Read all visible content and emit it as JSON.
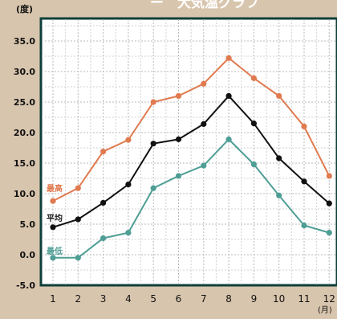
{
  "title_fragment": "ー　大気温グラフ",
  "colors": {
    "background": "#d8c5ad",
    "plot_background": "#ffffff",
    "frame": "#0e3f3a",
    "grid": "#b8b8b8",
    "text": "#111111"
  },
  "chart_data": {
    "type": "line",
    "categories": [
      "1",
      "2",
      "3",
      "4",
      "5",
      "6",
      "7",
      "8",
      "9",
      "10",
      "11",
      "12"
    ],
    "xlabel": "(月)",
    "ylabel": "(度)",
    "ylim": [
      -5,
      40
    ],
    "yticks": [
      "-5.0",
      "0.0",
      "5.0",
      "10.0",
      "15.0",
      "20.0",
      "25.0",
      "30.0",
      "35.0"
    ],
    "grid": true,
    "legend": "inline-left",
    "series": [
      {
        "name": "最高",
        "color": "#e07a4f",
        "values": [
          8.8,
          10.9,
          16.9,
          18.8,
          25.0,
          26.0,
          28.0,
          32.2,
          28.9,
          26.0,
          21.0,
          12.9
        ]
      },
      {
        "name": "平均",
        "color": "#111111",
        "values": [
          4.5,
          5.8,
          8.5,
          11.5,
          18.2,
          18.9,
          21.4,
          26.0,
          21.5,
          15.8,
          12.0,
          8.4
        ]
      },
      {
        "name": "最低",
        "color": "#4f9e95",
        "values": [
          -0.5,
          -0.5,
          2.7,
          3.6,
          10.9,
          12.9,
          14.6,
          18.9,
          14.8,
          9.7,
          4.8,
          3.6
        ]
      }
    ]
  }
}
